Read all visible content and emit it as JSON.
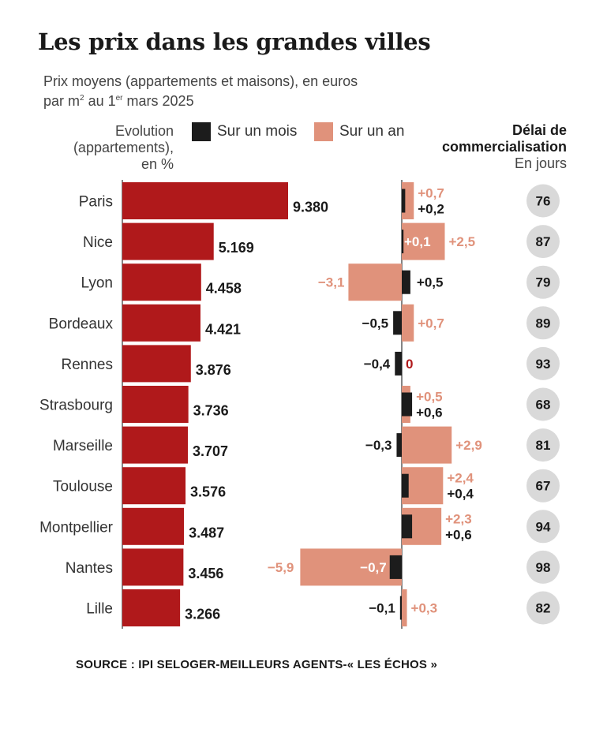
{
  "title": "Les prix dans les grandes villes",
  "subtitle": {
    "line1": "Prix moyens (appartements et maisons), en euros",
    "line2_pre": "par m",
    "line2_sup1": "2",
    "line2_mid": " au 1",
    "line2_sup2": "er",
    "line2_post": " mars 2025"
  },
  "evolution_label": [
    "Evolution",
    "(appartements),",
    "en %"
  ],
  "legend": {
    "month": {
      "label": "Sur un mois",
      "color": "#1c1c1c"
    },
    "year": {
      "label": "Sur un an",
      "color": "#e0927b"
    }
  },
  "delay_label": {
    "line1": "Délai de",
    "line2": "commercialisation",
    "line3": "En jours"
  },
  "source": "SOURCE : IPI SELOGER-MEILLEURS AGENTS-« LES ÉCHOS »",
  "colors": {
    "price_bar": "#b0191b",
    "month_bar": "#1c1c1c",
    "year_bar": "#e0927b",
    "year_text": "#e0927b",
    "zero_text": "#b0191b",
    "delay_circle": "#d9d9d9"
  },
  "chart_data": {
    "type": "bar",
    "categories": [
      "Paris",
      "Nice",
      "Lyon",
      "Bordeaux",
      "Rennes",
      "Strasbourg",
      "Marseille",
      "Toulouse",
      "Montpellier",
      "Nantes",
      "Lille"
    ],
    "price": {
      "values": [
        9380,
        5169,
        4458,
        4421,
        3876,
        3736,
        3707,
        3576,
        3487,
        3456,
        3266
      ],
      "labels": [
        "9.380",
        "5.169",
        "4.458",
        "4.421",
        "3.876",
        "3.736",
        "3.707",
        "3.576",
        "3.487",
        "3.456",
        "3.266"
      ]
    },
    "series": [
      {
        "name": "Sur un mois",
        "values": [
          0.2,
          0.1,
          0.5,
          -0.5,
          -0.4,
          0.6,
          -0.3,
          0.4,
          0.6,
          -0.7,
          -0.1
        ],
        "labels": [
          "+0,2",
          "+0,1",
          "+0,5",
          "−0,5",
          "−0,4",
          "+0,6",
          "−0,3",
          "+0,4",
          "+0,6",
          "−0,7",
          "−0,1"
        ]
      },
      {
        "name": "Sur un an",
        "values": [
          0.7,
          2.5,
          -3.1,
          0.7,
          0,
          0.5,
          2.9,
          2.4,
          2.3,
          -5.9,
          0.3
        ],
        "labels": [
          "+0,7",
          "+2,5",
          "−3,1",
          "+0,7",
          "0",
          "+0,5",
          "+2,9",
          "+2,4",
          "+2,3",
          "−5,9",
          "+0,3"
        ]
      }
    ],
    "delay_days": [
      76,
      87,
      79,
      89,
      93,
      68,
      81,
      67,
      94,
      98,
      82
    ]
  }
}
